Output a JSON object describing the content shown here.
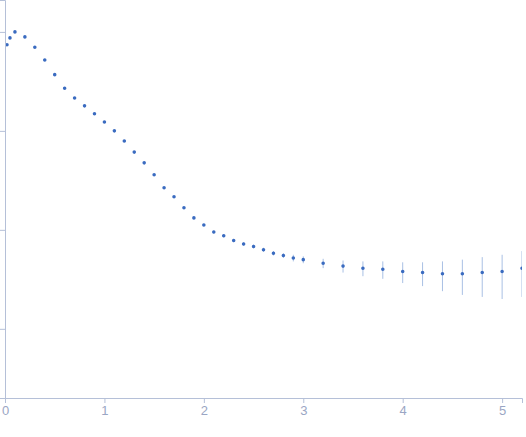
{
  "chart_data": {
    "type": "scatter",
    "x": [
      0.02,
      0.05,
      0.1,
      0.2,
      0.3,
      0.4,
      0.5,
      0.6,
      0.7,
      0.8,
      0.9,
      1.0,
      1.1,
      1.2,
      1.3,
      1.4,
      1.5,
      1.6,
      1.7,
      1.8,
      1.9,
      2.0,
      2.1,
      2.2,
      2.3,
      2.4,
      2.5,
      2.6,
      2.7,
      2.8,
      2.9,
      3.0,
      3.2,
      3.4,
      3.6,
      3.8,
      4.0,
      4.2,
      4.4,
      4.6,
      4.8,
      5.0,
      5.2
    ],
    "values": [
      0.74,
      0.87,
      1.0,
      0.89,
      0.7,
      0.52,
      0.37,
      0.27,
      0.215,
      0.179,
      0.149,
      0.123,
      0.1,
      0.079,
      0.061,
      0.0475,
      0.036,
      0.0266,
      0.0216,
      0.0167,
      0.0132,
      0.0112,
      0.0095,
      0.0087,
      0.0078,
      0.0072,
      0.0068,
      0.0063,
      0.0058,
      0.0055,
      0.0052,
      0.005,
      0.0046,
      0.0043,
      0.0041,
      0.004,
      0.0038,
      0.0037,
      0.0036,
      0.0036,
      0.0037,
      0.0038,
      0.0041
    ],
    "errors": [
      0.01,
      0.01,
      0.01,
      0.008,
      0.005,
      0.003,
      0.002,
      0.0015,
      0.001,
      0.0008,
      0.0006,
      0.0005,
      0.0004,
      0.0003,
      0.0003,
      0.0003,
      0.0003,
      0.0003,
      0.0003,
      0.0003,
      0.0003,
      0.0003,
      0.0003,
      0.0003,
      0.0003,
      0.0003,
      0.0003,
      0.0003,
      0.0003,
      0.0003,
      0.0004,
      0.0004,
      0.0005,
      0.0006,
      0.0007,
      0.0008,
      0.0009,
      0.001,
      0.0012,
      0.0014,
      0.0016,
      0.0018,
      0.002
    ],
    "color": "#3a6bc0",
    "marker": "circle",
    "log": "y",
    "tick_labels": "x",
    "xlim": [
      0,
      5.2
    ],
    "xticks": [
      0,
      1,
      2,
      3,
      4,
      5
    ],
    "ylim": [
      0.0002,
      2.1
    ],
    "yticks": [
      0.001,
      0.01,
      0.1,
      1
    ]
  }
}
